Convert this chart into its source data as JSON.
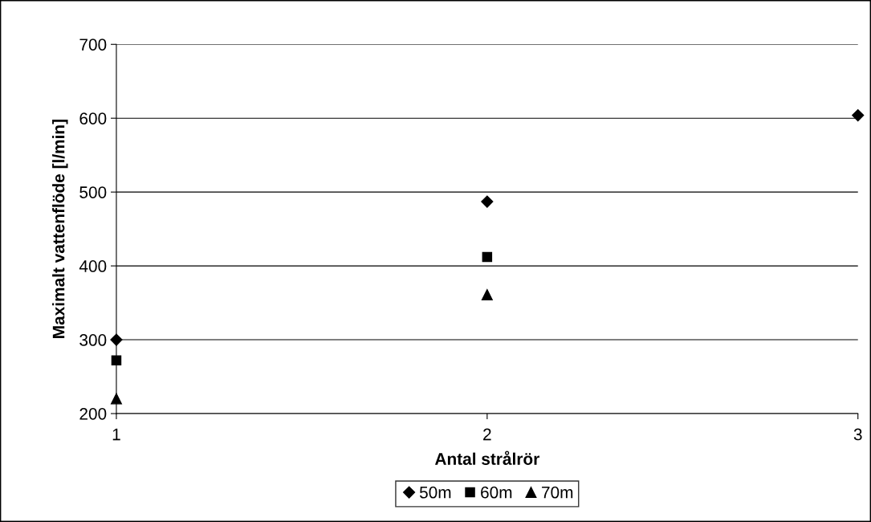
{
  "chart_data": {
    "type": "scatter",
    "xlabel": "Antal strålrör",
    "ylabel": "Maximalt vattenflöde [l/min]",
    "x": [
      1,
      2,
      3
    ],
    "xlim": [
      1,
      3
    ],
    "xticks": [
      1,
      2,
      3
    ],
    "ylim": [
      200,
      700
    ],
    "yticks": [
      200,
      300,
      400,
      500,
      600,
      700
    ],
    "grid": "y",
    "legend": "bottom",
    "series": [
      {
        "name": "50m",
        "color": "#000000",
        "marker": "diamond",
        "values": [
          300,
          487,
          604
        ]
      },
      {
        "name": "60m",
        "color": "#000000",
        "marker": "square",
        "values": [
          272,
          412,
          null
        ]
      },
      {
        "name": "70m",
        "color": "#000000",
        "marker": "triangle",
        "values": [
          220,
          361,
          null
        ]
      }
    ]
  }
}
